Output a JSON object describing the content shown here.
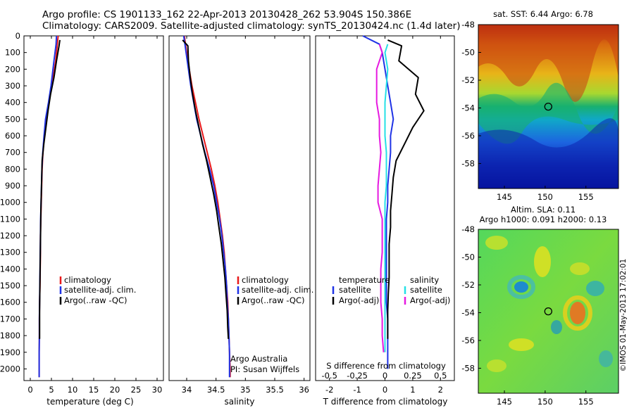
{
  "header": {
    "line1": "Argo profile: CS 1901133_162 22-Apr-2013 20130428_262 53.904S 150.386E",
    "line2": "Climatology: CARS2009. Satellite-adjusted climatology: synTS_20130424.nc (1.4d later)"
  },
  "colors": {
    "climatology": "#e8191b",
    "satellite": "#1f33e6",
    "argo": "#000000",
    "sal_satellite": "#25e0e6",
    "sal_argo": "#e619e0"
  },
  "chart_data": [
    {
      "type": "line",
      "panel": "temperature",
      "xlabel": "temperature (deg C)",
      "ylabel": "",
      "xlim": [
        -1.5,
        31.5
      ],
      "ylim": [
        2070,
        0
      ],
      "xticks": [
        0,
        5,
        10,
        15,
        20,
        25,
        30
      ],
      "yticks": [
        0,
        100,
        200,
        300,
        400,
        500,
        600,
        700,
        800,
        900,
        1000,
        1100,
        1200,
        1300,
        1400,
        1500,
        1600,
        1700,
        1800,
        1900,
        2000
      ],
      "legend": [
        "climatology",
        "satellite-adj. clim.",
        "Argo(..raw -QC)"
      ],
      "legend_position": "lower-center",
      "series": [
        {
          "name": "climatology",
          "x": [
            6.6,
            6.4,
            6.0,
            5.1,
            4.4,
            3.7,
            3.3,
            3.0,
            2.8,
            2.7,
            2.6,
            2.5,
            2.4,
            2.4,
            2.35,
            2.3,
            2.2,
            2.15,
            2.15,
            2.1,
            2.1,
            2.1
          ],
          "y": [
            0,
            50,
            150,
            300,
            400,
            500,
            600,
            700,
            800,
            900,
            1000,
            1100,
            1200,
            1300,
            1400,
            1500,
            1600,
            1700,
            1800,
            1900,
            2000,
            2050
          ]
        },
        {
          "name": "satellite-adj. clim.",
          "x": [
            6.2,
            6.1,
            5.6,
            4.9,
            4.3,
            3.6,
            3.25,
            2.95,
            2.75,
            2.65,
            2.55,
            2.45,
            2.4,
            2.35,
            2.3,
            2.25,
            2.2,
            2.15,
            2.15,
            2.1,
            2.1,
            2.1
          ],
          "y": [
            0,
            50,
            150,
            300,
            400,
            500,
            600,
            700,
            800,
            900,
            1000,
            1100,
            1200,
            1300,
            1400,
            1500,
            1600,
            1700,
            1800,
            1900,
            2000,
            2050
          ]
        },
        {
          "name": "Argo(..raw -QC)",
          "x": [
            7.0,
            6.8,
            6.2,
            5.6,
            4.8,
            4.2,
            3.7,
            3.2,
            2.8,
            2.7,
            2.6,
            2.5,
            2.45,
            2.4,
            2.35,
            2.3,
            2.25,
            2.2,
            2.2,
            2.2
          ],
          "y": [
            25,
            60,
            150,
            250,
            350,
            450,
            550,
            650,
            750,
            850,
            950,
            1050,
            1150,
            1250,
            1350,
            1450,
            1550,
            1650,
            1750,
            1820
          ]
        }
      ]
    },
    {
      "type": "line",
      "panel": "salinity",
      "xlabel": "salinity",
      "xlim": [
        33.7,
        36.1
      ],
      "ylim": [
        2070,
        0
      ],
      "xticks": [
        34,
        34.5,
        35,
        35.5,
        36
      ],
      "tick_labels": [
        "34",
        "34.5",
        "35",
        "35.5",
        "36"
      ],
      "legend": [
        "climatology",
        "satellite-adj. clim.",
        "Argo(..raw -QC)"
      ],
      "legend_position": "lower-center",
      "annotation": [
        "Argo Australia",
        "PI: Susan Wijffels"
      ],
      "series": [
        {
          "name": "climatology",
          "x": [
            33.96,
            33.98,
            34.02,
            34.09,
            34.15,
            34.21,
            34.28,
            34.35,
            34.42,
            34.48,
            34.53,
            34.57,
            34.61,
            34.64,
            34.66,
            34.68,
            34.7,
            34.71,
            34.72,
            34.73,
            34.74,
            34.74
          ],
          "y": [
            0,
            50,
            150,
            300,
            400,
            500,
            600,
            700,
            800,
            900,
            1000,
            1100,
            1200,
            1300,
            1400,
            1500,
            1600,
            1700,
            1800,
            1900,
            2000,
            2050
          ]
        },
        {
          "name": "satellite-adj. clim.",
          "x": [
            33.95,
            33.97,
            34.01,
            34.07,
            34.12,
            34.17,
            34.24,
            34.31,
            34.39,
            34.46,
            34.51,
            34.56,
            34.6,
            34.63,
            34.66,
            34.68,
            34.69,
            34.71,
            34.72,
            34.73,
            34.73,
            34.73
          ],
          "y": [
            0,
            50,
            150,
            300,
            400,
            500,
            600,
            700,
            800,
            900,
            1000,
            1100,
            1200,
            1300,
            1400,
            1500,
            1600,
            1700,
            1800,
            1900,
            2000,
            2050
          ]
        },
        {
          "name": "Argo(..raw -QC)",
          "x": [
            33.93,
            34.02,
            34.03,
            34.06,
            34.1,
            34.15,
            34.21,
            34.27,
            34.34,
            34.4,
            34.46,
            34.51,
            34.55,
            34.59,
            34.62,
            34.65,
            34.67,
            34.69,
            34.7,
            34.71
          ],
          "y": [
            25,
            60,
            150,
            250,
            350,
            450,
            550,
            650,
            750,
            850,
            950,
            1050,
            1150,
            1250,
            1350,
            1450,
            1550,
            1650,
            1750,
            1820
          ]
        }
      ]
    },
    {
      "type": "line",
      "panel": "difference",
      "xlabel": "T difference from climatology",
      "xlabel_top": "S difference from climatology",
      "xlim": [
        -2.5,
        2.5
      ],
      "ylim": [
        2070,
        0
      ],
      "xticks": [
        -2,
        -1,
        0,
        1,
        2
      ],
      "top_tick_labels": [
        "-0.5",
        "-0.25",
        "0",
        "0.25",
        "0.5"
      ],
      "legend_temperature": [
        "temperature",
        "satellite",
        "Argo(-adj)"
      ],
      "legend_salinity": [
        "salinity",
        "satellite",
        "Argo(-adj)"
      ],
      "legend_position": "lower-center",
      "series": [
        {
          "name": "satellite",
          "group": "temperature",
          "x": [
            -0.8,
            -0.2,
            -0.1,
            0.0,
            0.1,
            0.2,
            0.3,
            0.2,
            0.2,
            0.15,
            0.1,
            0.1,
            0.05,
            0.05,
            0.05,
            0.05,
            0.05,
            0.05,
            0.1,
            0.1,
            0.1,
            0.1
          ],
          "y": [
            0,
            50,
            100,
            200,
            300,
            400,
            500,
            600,
            700,
            800,
            900,
            1000,
            1100,
            1200,
            1300,
            1400,
            1500,
            1600,
            1700,
            1800,
            1900,
            2000
          ]
        },
        {
          "name": "Argo(-adj)",
          "group": "temperature",
          "x": [
            0.1,
            0.6,
            0.5,
            1.2,
            1.1,
            1.4,
            1.0,
            0.7,
            0.4,
            0.3,
            0.25,
            0.2,
            0.2,
            0.15,
            0.15,
            0.15,
            0.12,
            0.1,
            0.1,
            0.1
          ],
          "y": [
            25,
            60,
            150,
            250,
            350,
            450,
            550,
            650,
            750,
            850,
            950,
            1050,
            1150,
            1250,
            1350,
            1450,
            1550,
            1650,
            1750,
            1820
          ]
        },
        {
          "name": "satellite",
          "group": "salinity",
          "x": [
            0.1,
            0.0,
            0.1,
            0.05,
            0.0,
            0.0,
            0.0,
            0.05,
            0.05,
            0.05,
            0.0,
            0.0,
            0.0,
            0.0,
            0.0,
            0.0,
            0.0,
            0.0,
            0.0,
            0.0
          ],
          "y": [
            50,
            100,
            200,
            300,
            400,
            500,
            600,
            700,
            800,
            900,
            1000,
            1100,
            1200,
            1300,
            1400,
            1500,
            1600,
            1700,
            1800,
            1900
          ]
        },
        {
          "name": "Argo(-adj)",
          "group": "salinity",
          "x": [
            -0.2,
            -0.1,
            -0.3,
            -0.3,
            -0.3,
            -0.2,
            -0.2,
            -0.15,
            -0.2,
            -0.25,
            -0.25,
            -0.1,
            -0.1,
            -0.1,
            -0.15,
            -0.15,
            -0.15,
            -0.1,
            -0.1,
            -0.05
          ],
          "y": [
            50,
            100,
            200,
            300,
            400,
            500,
            600,
            700,
            800,
            900,
            1000,
            1100,
            1200,
            1300,
            1400,
            1500,
            1600,
            1700,
            1800,
            1900
          ]
        }
      ]
    },
    {
      "type": "heatmap",
      "panel": "sst_map",
      "title": "sat. SST: 6.44  Argo: 6.78",
      "xlim": [
        141.8,
        159
      ],
      "ylim": [
        -59.8,
        -48
      ],
      "xticks": [
        145,
        150,
        155
      ],
      "yticks": [
        -48,
        -50,
        -52,
        -54,
        -56,
        -58
      ],
      "marker": {
        "lon": 150.386,
        "lat": -53.904
      }
    },
    {
      "type": "heatmap",
      "panel": "sla_map",
      "title": "Altim. SLA: 0.11",
      "subtitle": "Argo h1000: 0.091  h2000: 0.13",
      "xlim": [
        141.8,
        159
      ],
      "ylim": [
        -59.8,
        -48
      ],
      "xticks": [
        145,
        150,
        155
      ],
      "yticks": [
        -48,
        -50,
        -52,
        -54,
        -56,
        -58
      ],
      "marker": {
        "lon": 150.386,
        "lat": -53.904
      }
    }
  ],
  "credit": "©IMOS 01-May-2013 17:02:01"
}
